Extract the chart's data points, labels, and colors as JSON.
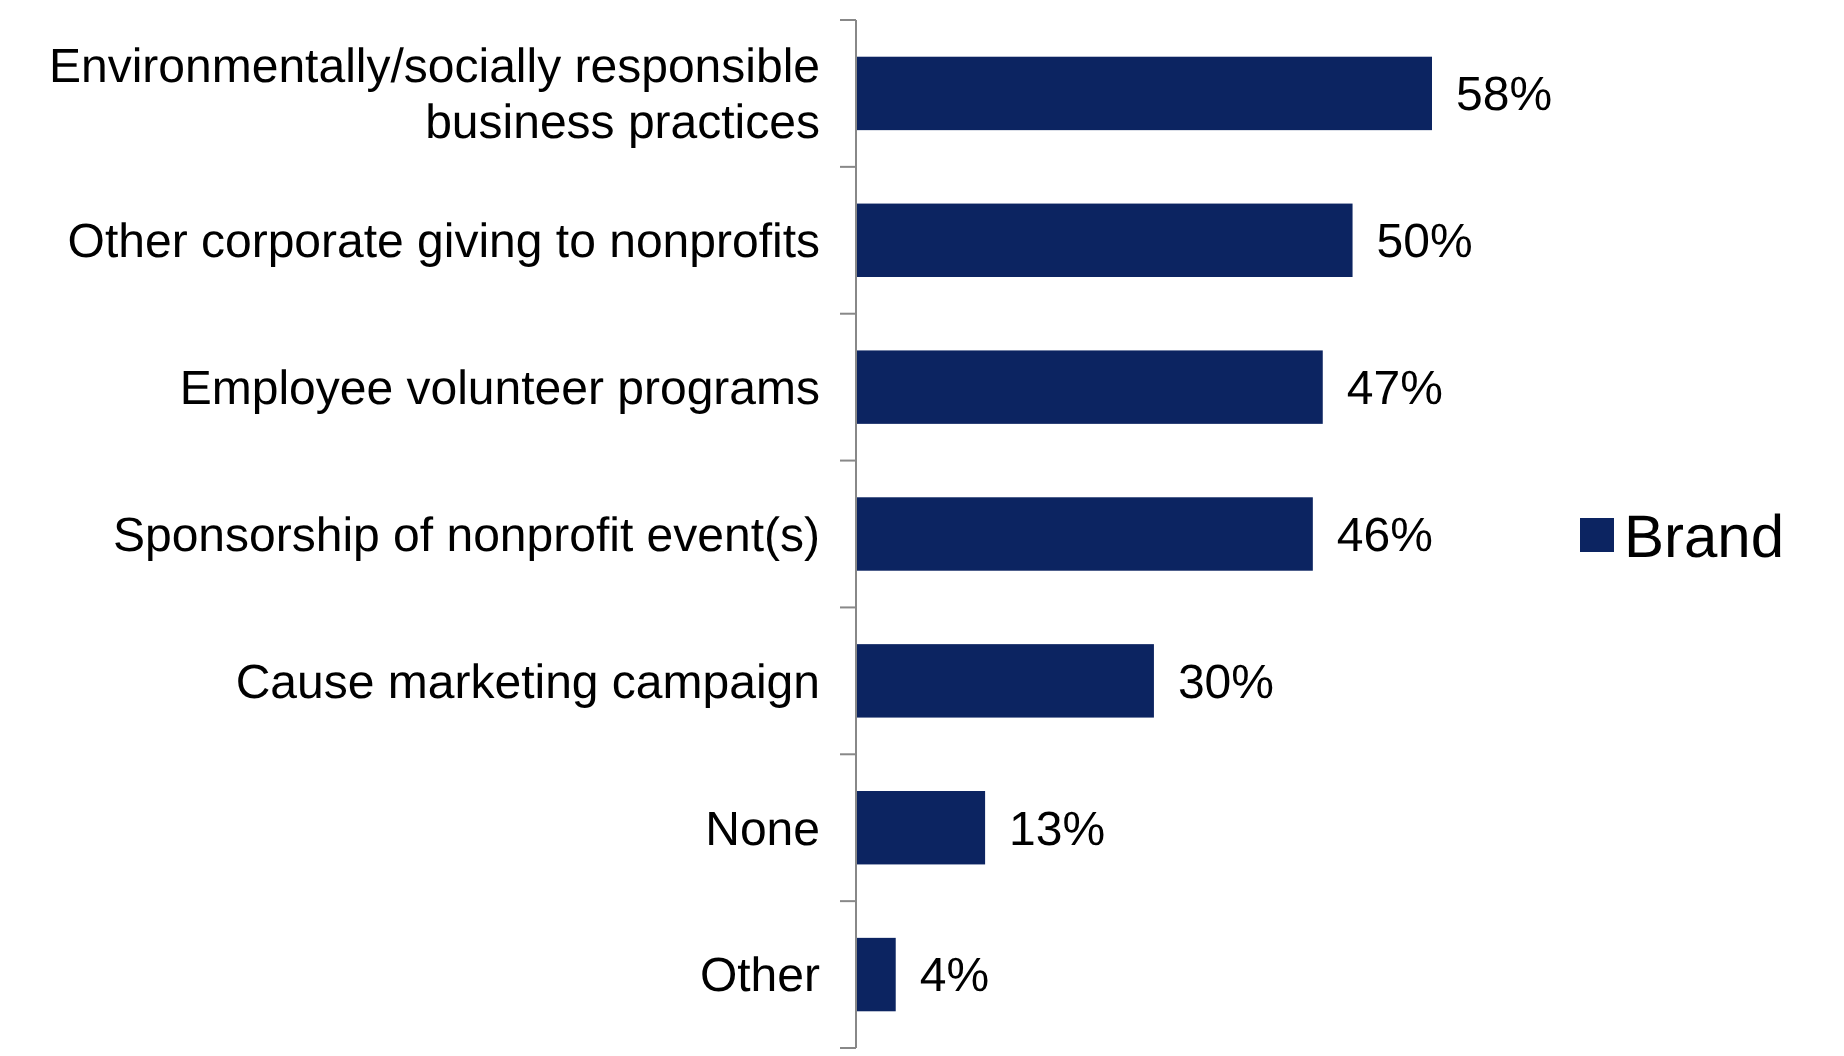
{
  "chart_data": {
    "type": "bar",
    "orientation": "horizontal",
    "categories": [
      "Environmentally/socially responsible business practices",
      "Other corporate giving to nonprofits",
      "Employee volunteer programs",
      "Sponsorship of nonprofit event(s)",
      "Cause marketing campaign",
      "None",
      "Other"
    ],
    "series": [
      {
        "name": "Brand",
        "color": "#0c2461",
        "values": [
          58,
          50,
          47,
          46,
          30,
          13,
          4
        ],
        "value_labels": [
          "58%",
          "50%",
          "47%",
          "46%",
          "30%",
          "13%",
          "4%"
        ]
      }
    ],
    "legend": "right"
  }
}
